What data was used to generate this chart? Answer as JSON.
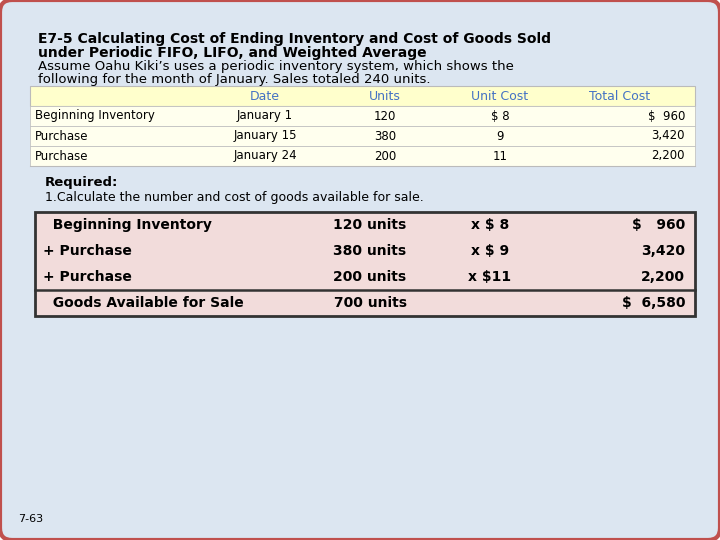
{
  "bg_color": "#dce6f1",
  "border_color": "#c0504d",
  "outer_bg": "#ffffff",
  "title_line1": "E7-5 Calculating Cost of Ending Inventory and Cost of Goods Sold",
  "title_line2": "under Periodic FIFO, LIFO, and Weighted Average",
  "subtitle_line1": "Assume Oahu Kiki’s uses a periodic inventory system, which shows the",
  "subtitle_line2": "following for the month of January. Sales totaled 240 units.",
  "table1_header": [
    "Date",
    "Units",
    "Unit Cost",
    "Total Cost"
  ],
  "table1_header_color": "#ffffcc",
  "table1_header_text_color": "#4472c4",
  "table1_rows": [
    [
      "Beginning Inventory",
      "January 1",
      "120",
      "$ 8",
      "$  960"
    ],
    [
      "Purchase",
      "January 15",
      "380",
      "9",
      "3,420"
    ],
    [
      "Purchase",
      "January 24",
      "200",
      "11",
      "2,200"
    ]
  ],
  "required_bold": "Required:",
  "required_text": "1.Calculate the number and cost of goods available for sale.",
  "table2_rows": [
    [
      "  Beginning Inventory",
      "120 units",
      "x $ 8",
      "$   960"
    ],
    [
      "+ Purchase",
      "380 units",
      "x $ 9",
      "3,420"
    ],
    [
      "+ Purchase",
      "200 units",
      "x $11",
      "2,200"
    ],
    [
      "  Goods Available for Sale",
      "700 units",
      "",
      "$  6,580"
    ]
  ],
  "table2_bg": "#f2dcdb",
  "page_label": "7-63"
}
